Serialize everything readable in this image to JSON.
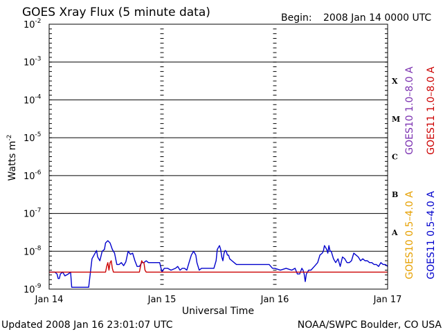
{
  "title": "GOES Xray Flux (5 minute data)",
  "begin_label": "Begin:",
  "begin_value": "2008 Jan 14 0000 UTC",
  "updated": "Updated 2008 Jan 16 23:01:07 UTC",
  "credit": "NOAA/SWPC Boulder, CO USA",
  "colors": {
    "goes10_long": "#7a2fb0",
    "goes11_long": "#cc0000",
    "goes10_short": "#e6a000",
    "goes11_short": "#0000cc",
    "axes": "#000000"
  },
  "chart_data": {
    "type": "line",
    "title": "GOES Xray Flux (5 minute data)",
    "xlabel": "Universal Time",
    "ylabel": "Watts m",
    "ylabel_sup": "-2",
    "yscale": "log",
    "ylim": [
      1e-09,
      0.01
    ],
    "xlim_days": [
      0,
      3
    ],
    "x_ticks": [
      {
        "day": 0,
        "label": "Jan 14"
      },
      {
        "day": 1,
        "label": "Jan 15"
      },
      {
        "day": 2,
        "label": "Jan 16"
      },
      {
        "day": 3,
        "label": "Jan 17"
      }
    ],
    "y_ticks": [
      {
        "exp": -2,
        "base": "10",
        "sup": "-2"
      },
      {
        "exp": -3,
        "base": "10",
        "sup": "-3"
      },
      {
        "exp": -4,
        "base": "10",
        "sup": "-4"
      },
      {
        "exp": -5,
        "base": "10",
        "sup": "-5"
      },
      {
        "exp": -6,
        "base": "10",
        "sup": "-6"
      },
      {
        "exp": -7,
        "base": "10",
        "sup": "-7"
      },
      {
        "exp": -8,
        "base": "10",
        "sup": "-8"
      },
      {
        "exp": -9,
        "base": "10",
        "sup": "-9"
      }
    ],
    "flare_classes": [
      {
        "label": "X",
        "exp": -3.5
      },
      {
        "label": "M",
        "exp": -4.5
      },
      {
        "label": "C",
        "exp": -5.5
      },
      {
        "label": "B",
        "exp": -6.5
      },
      {
        "label": "A",
        "exp": -7.5
      }
    ],
    "legend": [
      {
        "label": "GOES10 1.0–8.0 A",
        "color_key": "goes10_long"
      },
      {
        "label": "GOES11 1.0–8.0 A",
        "color_key": "goes11_long"
      },
      {
        "label": "GOES10 0.5–4.0 A",
        "color_key": "goes10_short"
      },
      {
        "label": "GOES11 0.5–4.0 A",
        "color_key": "goes11_short"
      }
    ],
    "series": [
      {
        "name": "GOES11 0.5–4.0 A",
        "color_key": "goes11_short",
        "x_days": [
          0,
          0.05,
          0.07,
          0.08,
          0.09,
          0.1,
          0.12,
          0.14,
          0.17,
          0.19,
          0.2,
          0.22,
          0.25,
          0.35,
          0.38,
          0.42,
          0.43,
          0.45,
          0.47,
          0.49,
          0.5,
          0.52,
          0.54,
          0.56,
          0.58,
          0.6,
          0.62,
          0.64,
          0.66,
          0.68,
          0.7,
          0.72,
          0.74,
          0.76,
          0.78,
          0.8,
          0.82,
          0.84,
          0.86,
          0.88,
          0.9,
          0.92,
          0.95,
          0.98,
          1.0,
          1.02,
          1.05,
          1.08,
          1.12,
          1.14,
          1.16,
          1.18,
          1.2,
          1.22,
          1.24,
          1.26,
          1.28,
          1.29,
          1.3,
          1.31,
          1.33,
          1.35,
          1.38,
          1.42,
          1.46,
          1.48,
          1.49,
          1.5,
          1.51,
          1.52,
          1.53,
          1.54,
          1.55,
          1.56,
          1.57,
          1.58,
          1.59,
          1.6,
          1.62,
          1.64,
          1.66,
          1.68,
          1.7,
          1.75,
          1.8,
          1.85,
          1.9,
          1.95,
          1.98,
          2.0,
          2.05,
          2.1,
          2.15,
          2.18,
          2.2,
          2.22,
          2.24,
          2.25,
          2.26,
          2.27,
          2.28,
          2.3,
          2.32,
          2.35,
          2.38,
          2.4,
          2.42,
          2.43,
          2.44,
          2.45,
          2.46,
          2.47,
          2.48,
          2.49,
          2.5,
          2.52,
          2.54,
          2.56,
          2.58,
          2.6,
          2.62,
          2.64,
          2.66,
          2.68,
          2.7,
          2.72,
          2.74,
          2.76,
          2.78,
          2.8,
          2.82,
          2.84,
          2.86,
          2.88,
          2.9,
          2.92,
          2.94,
          2.96,
          2.98,
          3.0
        ],
        "y_exp": [
          -8.55,
          -8.55,
          -8.6,
          -8.72,
          -8.72,
          -8.6,
          -8.55,
          -8.65,
          -8.6,
          -8.55,
          -8.95,
          -8.95,
          -8.95,
          -8.95,
          -8.2,
          -7.98,
          -8.15,
          -8.25,
          -8.0,
          -7.95,
          -7.78,
          -7.72,
          -7.78,
          -7.95,
          -8.05,
          -8.35,
          -8.35,
          -8.3,
          -8.38,
          -8.28,
          -8.0,
          -8.08,
          -8.05,
          -8.25,
          -8.4,
          -8.4,
          -8.3,
          -8.3,
          -8.25,
          -8.3,
          -8.3,
          -8.3,
          -8.3,
          -8.3,
          -8.55,
          -8.45,
          -8.45,
          -8.5,
          -8.45,
          -8.4,
          -8.5,
          -8.45,
          -8.45,
          -8.5,
          -8.3,
          -8.1,
          -8.0,
          -8.05,
          -8.1,
          -8.3,
          -8.5,
          -8.45,
          -8.45,
          -8.45,
          -8.45,
          -8.25,
          -7.95,
          -7.9,
          -7.85,
          -7.95,
          -8.15,
          -8.25,
          -8.05,
          -7.98,
          -8.0,
          -8.1,
          -8.1,
          -8.2,
          -8.25,
          -8.3,
          -8.35,
          -8.35,
          -8.35,
          -8.35,
          -8.35,
          -8.35,
          -8.35,
          -8.35,
          -8.45,
          -8.45,
          -8.5,
          -8.45,
          -8.5,
          -8.45,
          -8.6,
          -8.6,
          -8.45,
          -8.5,
          -8.6,
          -8.8,
          -8.6,
          -8.5,
          -8.5,
          -8.4,
          -8.3,
          -8.1,
          -8.05,
          -8.0,
          -7.85,
          -7.9,
          -7.95,
          -8.05,
          -7.85,
          -8.0,
          -8.0,
          -8.2,
          -8.3,
          -8.2,
          -8.4,
          -8.15,
          -8.2,
          -8.3,
          -8.3,
          -8.25,
          -8.05,
          -8.1,
          -8.15,
          -8.25,
          -8.2,
          -8.25,
          -8.25,
          -8.3,
          -8.3,
          -8.35,
          -8.35,
          -8.4,
          -8.3,
          -8.35,
          -8.35,
          -8.4
        ]
      },
      {
        "name": "GOES11 1.0–8.0 A",
        "color_key": "goes11_long",
        "x_days": [
          0,
          0.5,
          0.51,
          0.52,
          0.53,
          0.54,
          0.55,
          0.56,
          0.57,
          0.58,
          0.59,
          0.6,
          0.8,
          0.81,
          0.82,
          0.83,
          0.84,
          0.85,
          0.86,
          3.0
        ],
        "y_exp": [
          -8.55,
          -8.55,
          -8.4,
          -8.3,
          -8.5,
          -8.3,
          -8.25,
          -8.45,
          -8.55,
          -8.55,
          -8.55,
          -8.55,
          -8.55,
          -8.4,
          -8.25,
          -8.3,
          -8.3,
          -8.5,
          -8.55,
          -8.55
        ]
      }
    ]
  }
}
